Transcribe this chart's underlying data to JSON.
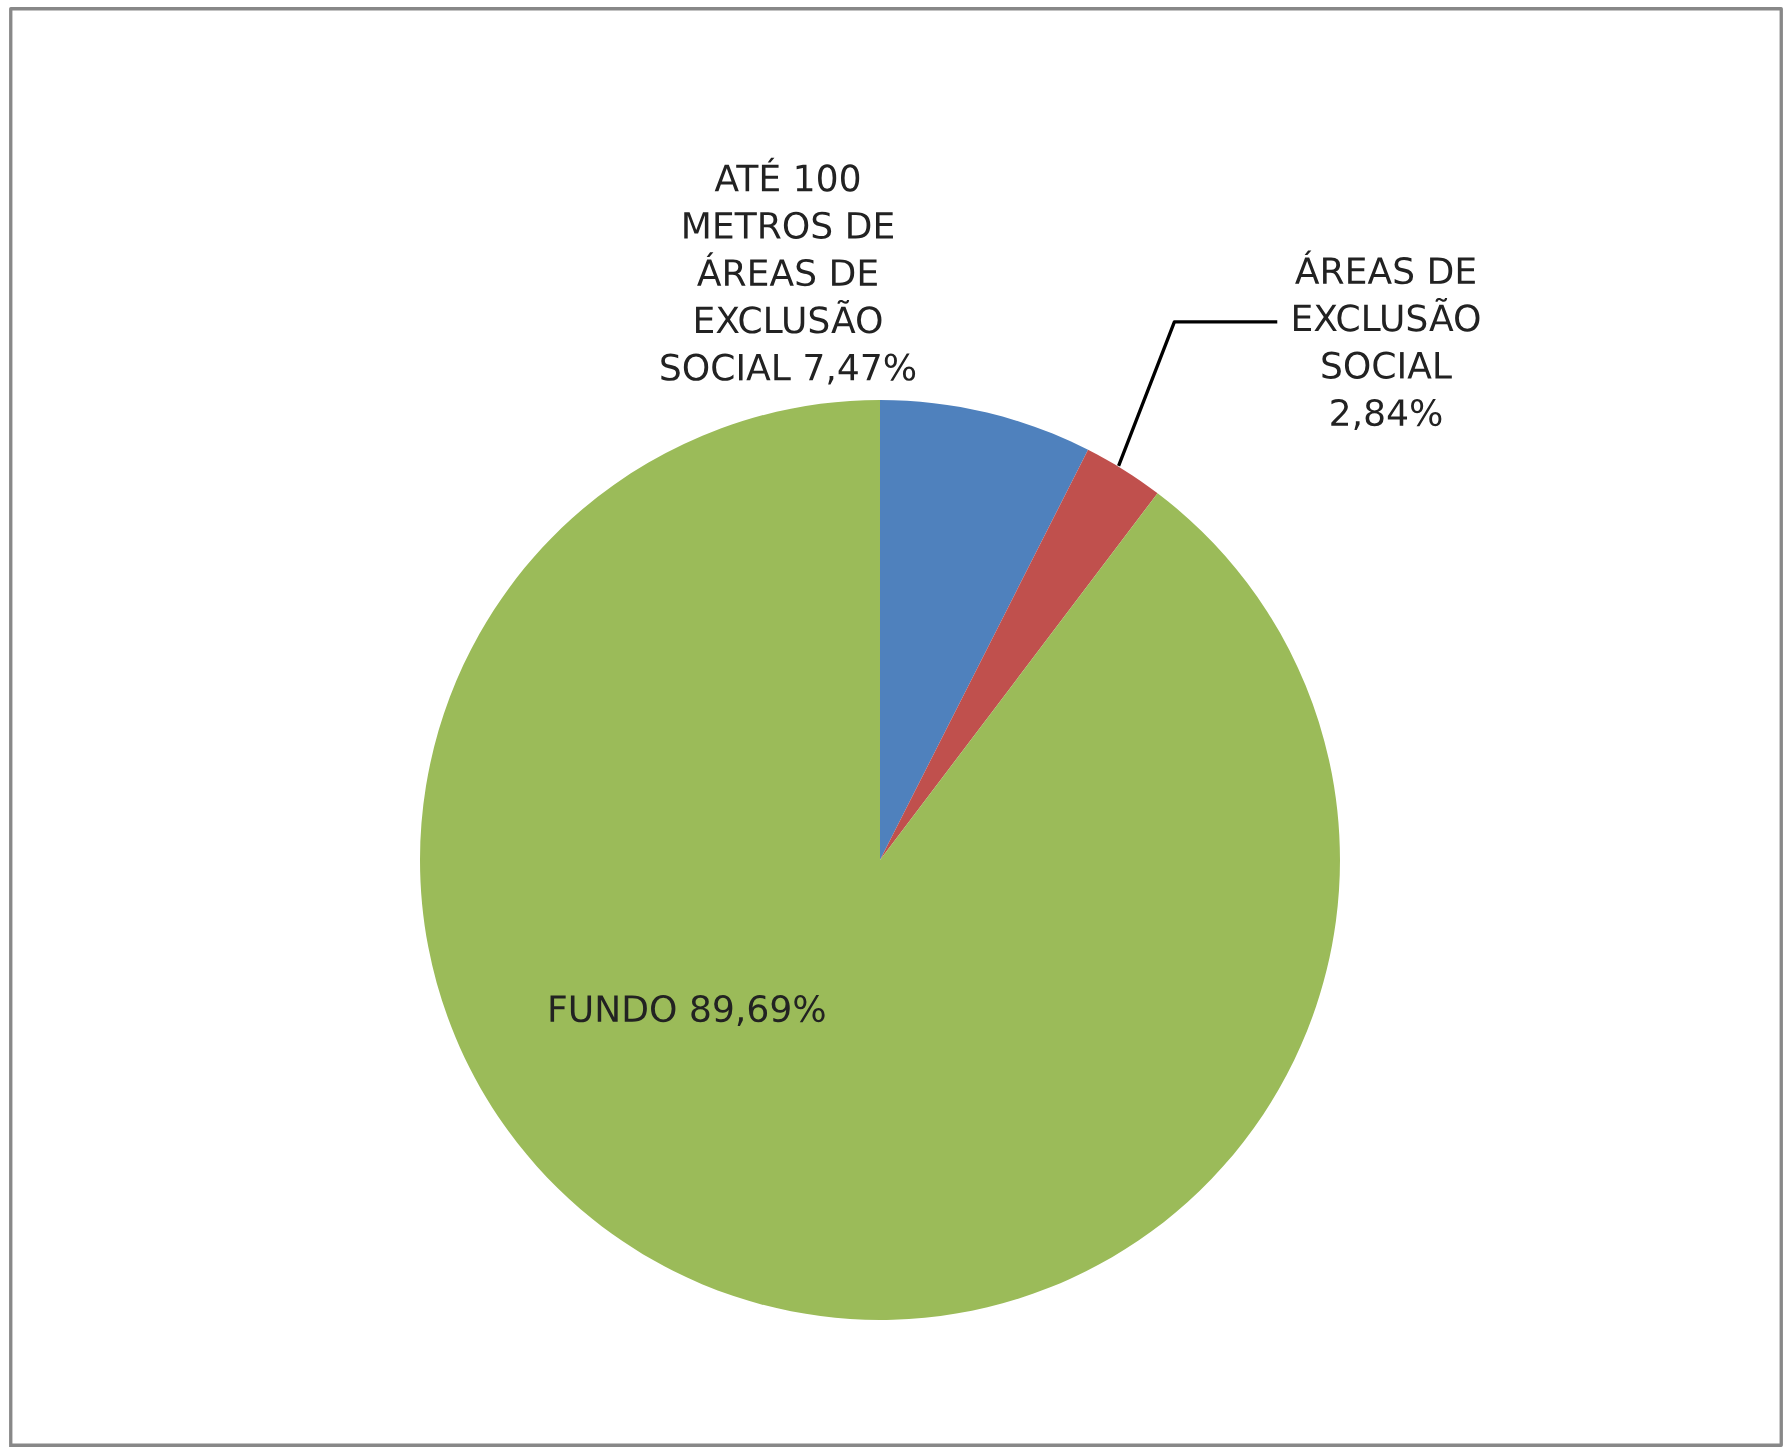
{
  "chart_data": {
    "type": "pie",
    "categories": [
      "ATÉ 100\nMETROS DE\nÁREAS DE\nEXCLUSÃO\nSOCIAL",
      "ÁREAS DE\nEXCLUSÃO\nSOCIAL",
      "FUNDO"
    ],
    "values": [
      7.47,
      2.84,
      89.69
    ],
    "value_labels": [
      "7,47%",
      "2,84%",
      "89,69%"
    ],
    "colors": [
      "#4f81bd",
      "#c0504d",
      "#9bbb59"
    ],
    "legend": false
  }
}
